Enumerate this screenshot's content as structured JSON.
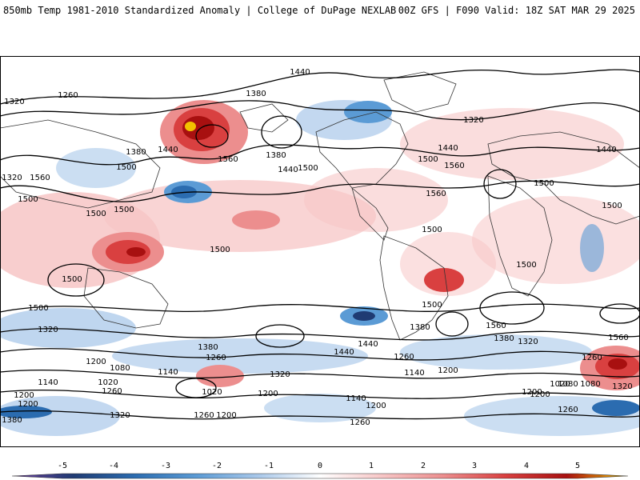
{
  "header": {
    "left_title": "850mb Temp 1981-2010 Standardized Anomaly | College of DuPage NEXLAB",
    "right_title": "00Z GFS | F090 Valid: 18Z SAT MAR 29 2025"
  },
  "colorbar": {
    "ticks": [
      "-5",
      "-4",
      "-3",
      "-2",
      "-1",
      "0",
      "1",
      "2",
      "3",
      "4",
      "5"
    ],
    "colors": [
      "#6a3d9a",
      "#1f3b73",
      "#2b6cb0",
      "#5b9bd5",
      "#a9c8ea",
      "#ffffff",
      "#f7c6c6",
      "#ec8e8e",
      "#d94040",
      "#a81010",
      "#f2c200"
    ]
  },
  "contour_labels": [
    "1440",
    "1260",
    "1320",
    "1380",
    "1440",
    "1560",
    "1500",
    "1380",
    "1320",
    "1440",
    "1500",
    "1560",
    "1380",
    "1440",
    "1500",
    "1320",
    "1500",
    "1560",
    "1500",
    "1440",
    "1560",
    "1500",
    "1500",
    "1500",
    "1500",
    "1500",
    "1500",
    "1500",
    "1500",
    "1560",
    "1320",
    "1500",
    "1380",
    "1440",
    "1380",
    "1320",
    "1560",
    "1260",
    "1200",
    "1080",
    "1140",
    "1260",
    "1200",
    "1020",
    "1080",
    "1140",
    "1020",
    "1260",
    "1200",
    "1320",
    "1140",
    "1200",
    "1260",
    "1200",
    "1320",
    "1380",
    "1440",
    "1260",
    "1200",
    "1140",
    "1200",
    "1080",
    "1020",
    "1320",
    "1200",
    "1260",
    "1260",
    "1200",
    "1380"
  ]
}
